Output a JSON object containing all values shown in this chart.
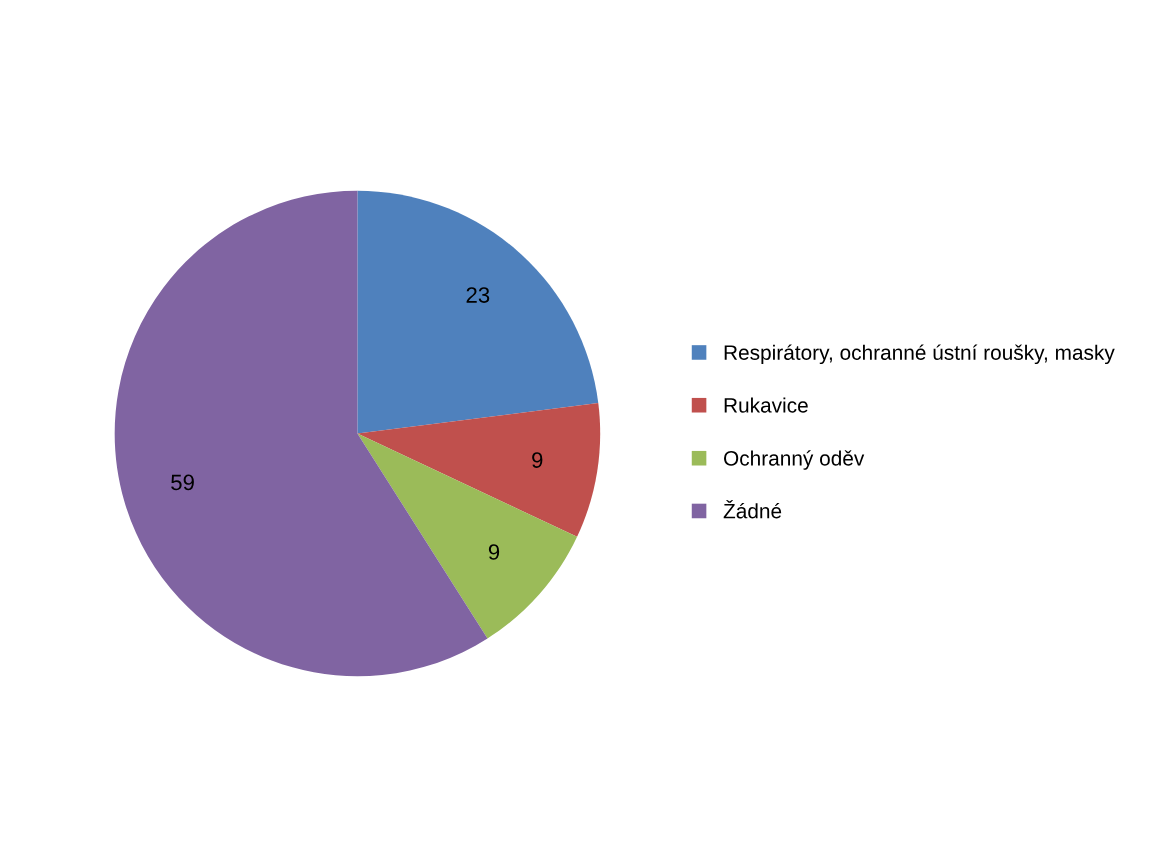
{
  "chart_data": {
    "type": "pie",
    "categories": [
      "Respirátory, ochranné ústní roušky, masky",
      "Rukavice",
      "Ochranný oděv",
      "Žádné"
    ],
    "values": [
      23,
      9,
      9,
      59
    ],
    "colors": [
      "#4f81bd",
      "#c0504d",
      "#9bbb59",
      "#8064a2"
    ],
    "data_labels": true,
    "legend": "right"
  }
}
